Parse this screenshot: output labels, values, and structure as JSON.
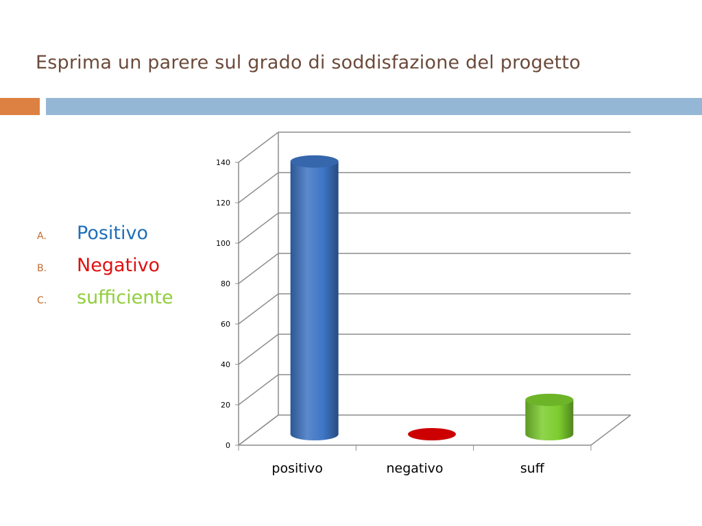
{
  "slide": {
    "title": "Esprima un parere sul grado di soddisfazione del progetto",
    "colors": {
      "title": "#6b4a3a",
      "accent": "#dd8142",
      "band": "#95b7d6"
    }
  },
  "options": [
    {
      "letter": "A.",
      "text": "Positivo",
      "color": "#1f6fb8"
    },
    {
      "letter": "B.",
      "text": "Negativo",
      "color": "#e01010"
    },
    {
      "letter": "C.",
      "text": "sufficiente",
      "color": "#8fce3a"
    }
  ],
  "chart_data": {
    "type": "bar",
    "style": "3d-cylinder",
    "categories": [
      "positivo",
      "negativo",
      "suff"
    ],
    "values": [
      135,
      0,
      17
    ],
    "colors": [
      "#3d74c4",
      "#cc0000",
      "#7ccc2e"
    ],
    "ylim": [
      0,
      140
    ],
    "yticks": [
      0,
      20,
      40,
      60,
      80,
      100,
      120,
      140
    ],
    "grid": true,
    "legend": "none",
    "title": "",
    "xlabel": "",
    "ylabel": ""
  }
}
